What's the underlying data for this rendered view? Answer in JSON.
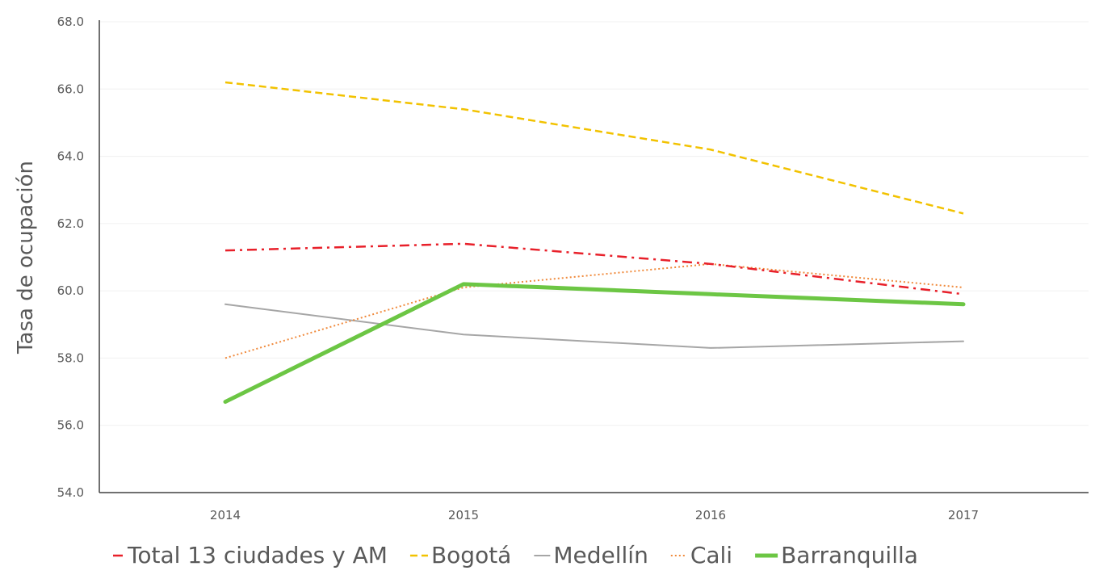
{
  "chart_data": {
    "type": "line",
    "title": "",
    "xlabel": "",
    "ylabel": "Tasa de ocupación",
    "categories": [
      "2014",
      "2015",
      "2016",
      "2017"
    ],
    "ylim": [
      54.0,
      68.0
    ],
    "yticks": [
      "54.0",
      "56.0",
      "58.0",
      "60.0",
      "62.0",
      "64.0",
      "66.0",
      "68.0"
    ],
    "grid": true,
    "legend_position": "bottom",
    "series": [
      {
        "name": "Total 13 ciudades y AM",
        "values": [
          61.2,
          61.4,
          60.8,
          59.9
        ],
        "color": "#e8202a",
        "style": "dashdot"
      },
      {
        "name": "Bogotá",
        "values": [
          66.2,
          65.4,
          64.2,
          62.3
        ],
        "color": "#f2c200",
        "style": "dashed"
      },
      {
        "name": "Medellín",
        "values": [
          59.6,
          58.7,
          58.3,
          58.5
        ],
        "color": "#a6a6a6",
        "style": "solid-thin"
      },
      {
        "name": "Cali",
        "values": [
          58.0,
          60.1,
          60.8,
          60.1
        ],
        "color": "#f08a3c",
        "style": "dotted"
      },
      {
        "name": "Barranquilla",
        "values": [
          56.7,
          60.2,
          59.9,
          59.6
        ],
        "color": "#6cc644",
        "style": "solid-thick"
      }
    ]
  }
}
